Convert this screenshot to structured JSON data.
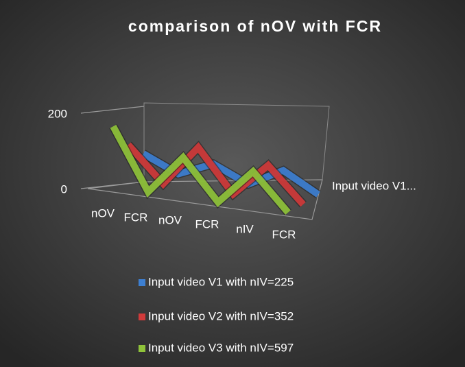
{
  "chart_data": {
    "type": "line3d",
    "title": "comparison of nOV with FCR",
    "categories": [
      "nOV",
      "FCR",
      "nOV",
      "FCR",
      "nIV",
      "FCR"
    ],
    "series": [
      {
        "name": "Input video V1 with nIV=225",
        "color": "#3d7fd1",
        "values": [
          60,
          20,
          60,
          20,
          70,
          20
        ]
      },
      {
        "name": "Input video V2 with nIV=352",
        "color": "#d03a3a",
        "values": [
          100,
          10,
          120,
          10,
          100,
          10
        ]
      },
      {
        "name": "Input video V3 with nIV=597",
        "color": "#8fc33a",
        "values": [
          165,
          5,
          110,
          5,
          100,
          5
        ]
      }
    ],
    "depth_label": "Input video V1...",
    "ylim": [
      0,
      200
    ],
    "yticks": [
      0,
      200
    ],
    "legend": "bottom"
  }
}
